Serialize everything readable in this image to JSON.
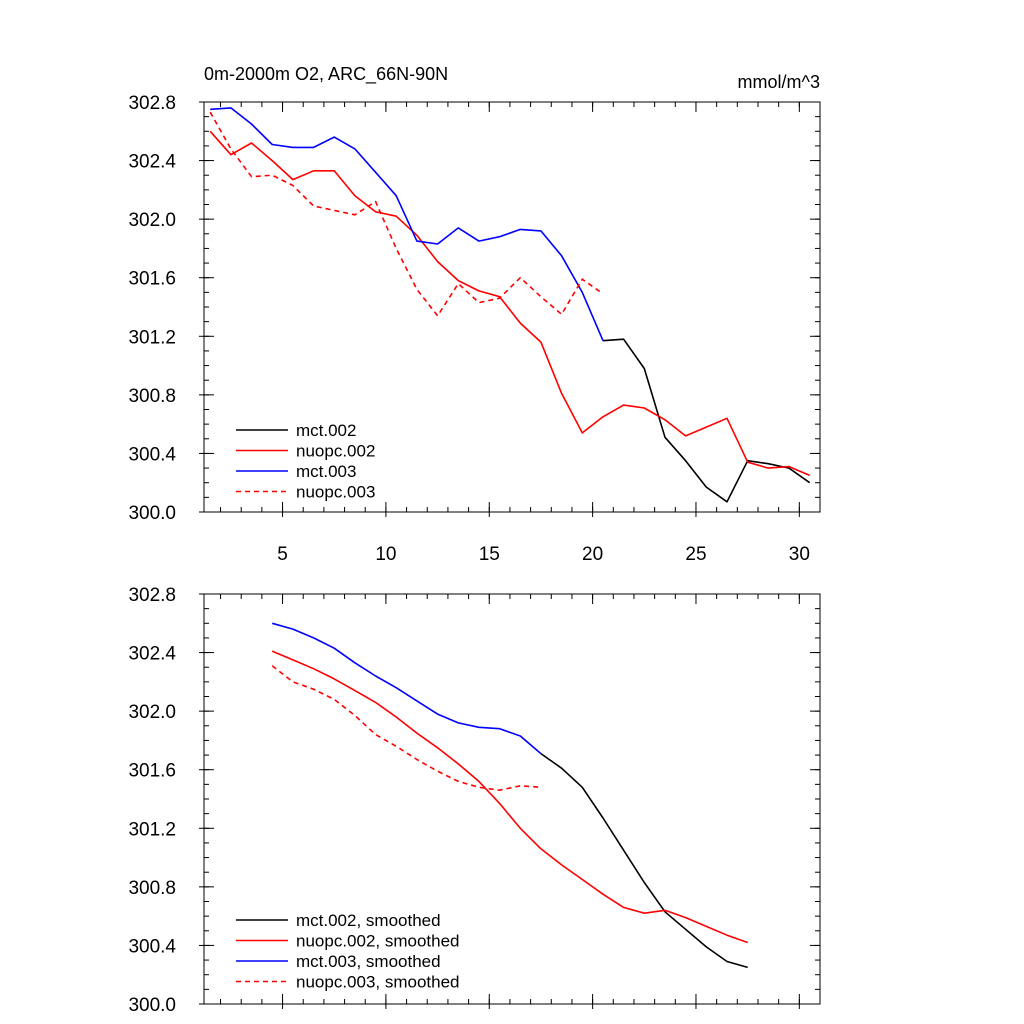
{
  "colors": {
    "mct.002": "#000000",
    "nuopc.002": "#ff0000",
    "mct.003": "#0000ff",
    "nuopc.003": "#ff0000"
  },
  "chart_data": [
    {
      "type": "line",
      "title": "0m-2000m O2, ARC_66N-90N",
      "units": "mmol/m^3",
      "xlim": [
        1.2,
        31
      ],
      "ylim": [
        300.0,
        302.8
      ],
      "xticks": [
        "5",
        "10",
        "15",
        "20",
        "25",
        "30"
      ],
      "yticks": [
        "300.0",
        "300.4",
        "300.8",
        "301.2",
        "301.6",
        "302.0",
        "302.4",
        "302.8"
      ],
      "series": [
        {
          "name": "mct.002",
          "color": "#000000",
          "dash": false,
          "x": [
            20.5,
            21.5,
            22.5,
            23.5,
            24.5,
            25.5,
            26.5,
            27.5,
            28.5,
            29.5,
            30.5
          ],
          "y": [
            301.17,
            301.18,
            300.98,
            300.51,
            300.35,
            300.17,
            300.07,
            300.35,
            300.33,
            300.3,
            300.2
          ]
        },
        {
          "name": "nuopc.002",
          "color": "#ff0000",
          "dash": false,
          "x": [
            1.5,
            2.5,
            3.5,
            4.5,
            5.5,
            6.5,
            7.5,
            8.5,
            9.5,
            10.5,
            11.5,
            12.5,
            13.5,
            14.5,
            15.5,
            16.5,
            17.5,
            18.5,
            19.5,
            20.5,
            21.5,
            22.5,
            23.5,
            24.5,
            25.5,
            26.5,
            27.5,
            28.5,
            29.5,
            30.5
          ],
          "y": [
            302.6,
            302.44,
            302.52,
            302.4,
            302.27,
            302.33,
            302.33,
            302.16,
            302.05,
            302.02,
            301.89,
            301.71,
            301.58,
            301.51,
            301.47,
            301.29,
            301.16,
            300.81,
            300.54,
            300.65,
            300.73,
            300.71,
            300.63,
            300.52,
            300.58,
            300.64,
            300.34,
            300.3,
            300.31,
            300.25
          ]
        },
        {
          "name": "mct.003",
          "color": "#0000ff",
          "dash": false,
          "x": [
            1.5,
            2.5,
            3.5,
            4.5,
            5.5,
            6.5,
            7.5,
            8.5,
            9.5,
            10.5,
            11.5,
            12.5,
            13.5,
            14.5,
            15.5,
            16.5,
            17.5,
            18.5,
            19.5,
            20.5
          ],
          "y": [
            302.75,
            302.76,
            302.65,
            302.51,
            302.49,
            302.49,
            302.56,
            302.48,
            302.32,
            302.16,
            301.85,
            301.83,
            301.94,
            301.85,
            301.88,
            301.93,
            301.92,
            301.75,
            301.5,
            301.17
          ]
        },
        {
          "name": "nuopc.003",
          "color": "#ff0000",
          "dash": true,
          "x": [
            1.5,
            2.5,
            3.5,
            4.5,
            5.5,
            6.5,
            7.5,
            8.5,
            9.5,
            10.5,
            11.5,
            12.5,
            13.5,
            14.5,
            15.5,
            16.5,
            17.5,
            18.5,
            19.5,
            20.5
          ],
          "y": [
            302.73,
            302.48,
            302.29,
            302.3,
            302.23,
            302.09,
            302.06,
            302.03,
            302.12,
            301.8,
            301.52,
            301.34,
            301.56,
            301.43,
            301.46,
            301.6,
            301.47,
            301.35,
            301.59,
            301.49
          ]
        }
      ]
    },
    {
      "type": "line",
      "title": "",
      "units": "",
      "xlim": [
        1.2,
        31
      ],
      "ylim": [
        300.0,
        302.8
      ],
      "xticks": [
        "",
        "",
        "",
        "",
        "",
        ""
      ],
      "yticks": [
        "300.0",
        "300.4",
        "300.8",
        "301.2",
        "301.6",
        "302.0",
        "302.4",
        "302.8"
      ],
      "series": [
        {
          "name": "mct.002, smoothed",
          "color": "#000000",
          "dash": false,
          "x": [
            17.5,
            18.5,
            19.5,
            20.5,
            21.5,
            22.5,
            23.5,
            24.5,
            25.5,
            26.5,
            27.5
          ],
          "y": [
            301.71,
            301.61,
            301.48,
            301.27,
            301.05,
            300.83,
            300.63,
            300.51,
            300.39,
            300.29,
            300.25
          ]
        },
        {
          "name": "nuopc.002, smoothed",
          "color": "#ff0000",
          "dash": false,
          "x": [
            4.5,
            5.5,
            6.5,
            7.5,
            8.5,
            9.5,
            10.5,
            11.5,
            12.5,
            13.5,
            14.5,
            15.5,
            16.5,
            17.5,
            18.5,
            19.5,
            20.5,
            21.5,
            22.5,
            23.5,
            24.5,
            25.5,
            26.5,
            27.5
          ],
          "y": [
            302.41,
            302.35,
            302.29,
            302.22,
            302.14,
            302.06,
            301.96,
            301.85,
            301.75,
            301.64,
            301.52,
            301.37,
            301.2,
            301.06,
            300.95,
            300.85,
            300.75,
            300.66,
            300.62,
            300.64,
            300.59,
            300.53,
            300.47,
            300.42
          ]
        },
        {
          "name": "mct.003, smoothed",
          "color": "#0000ff",
          "dash": false,
          "x": [
            4.5,
            5.5,
            6.5,
            7.5,
            8.5,
            9.5,
            10.5,
            11.5,
            12.5,
            13.5,
            14.5,
            15.5,
            16.5,
            17.5
          ],
          "y": [
            302.6,
            302.56,
            302.5,
            302.43,
            302.33,
            302.24,
            302.16,
            302.07,
            301.98,
            301.92,
            301.89,
            301.88,
            301.83,
            301.71
          ]
        },
        {
          "name": "nuopc.003, smoothed",
          "color": "#ff0000",
          "dash": true,
          "x": [
            4.5,
            5.5,
            6.5,
            7.5,
            8.5,
            9.5,
            10.5,
            11.5,
            12.5,
            13.5,
            14.5,
            15.5,
            16.5,
            17.5
          ],
          "y": [
            302.31,
            302.2,
            302.15,
            302.08,
            301.97,
            301.84,
            301.76,
            301.67,
            301.59,
            301.52,
            301.48,
            301.46,
            301.49,
            301.48
          ]
        }
      ]
    }
  ]
}
